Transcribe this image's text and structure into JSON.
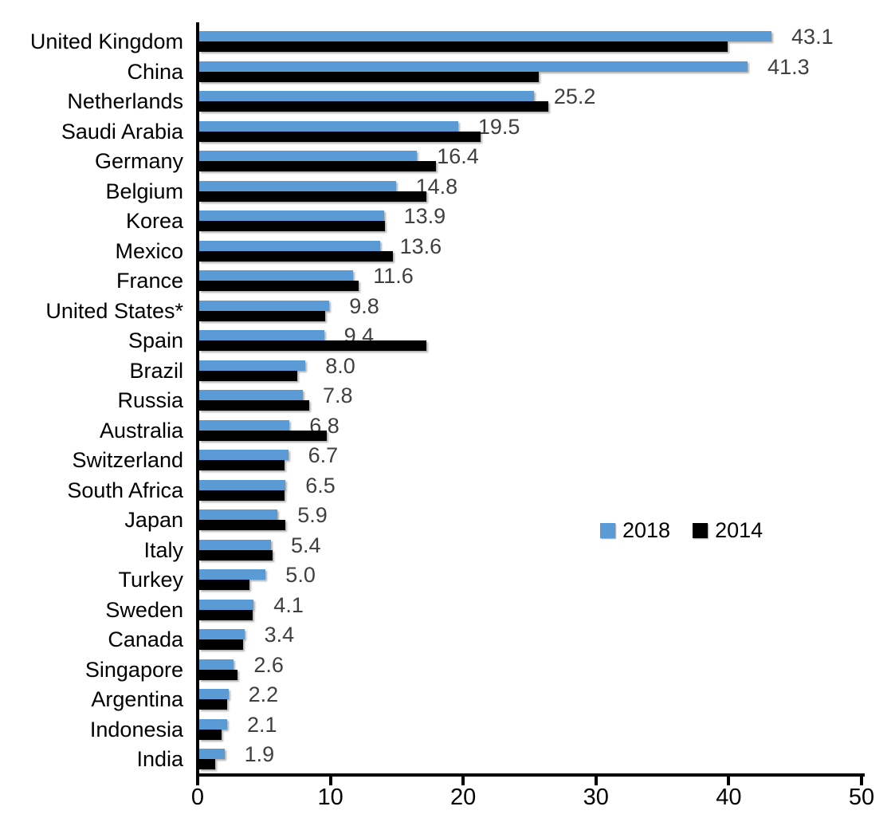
{
  "chart_data": {
    "type": "bar",
    "orientation": "horizontal",
    "title": "",
    "xlabel": "",
    "ylabel": "",
    "xlim": [
      0,
      50
    ],
    "x_ticks": [
      "0",
      "10",
      "20",
      "30",
      "40",
      "50"
    ],
    "grid": false,
    "legend_position": "center-right",
    "categories": [
      "United Kingdom",
      "China",
      "Netherlands",
      "Saudi Arabia",
      "Germany",
      "Belgium",
      "Korea",
      "Mexico",
      "France",
      "United States*",
      "Spain",
      "Brazil",
      "Russia",
      "Australia",
      "Switzerland",
      "South Africa",
      "Japan",
      "Italy",
      "Turkey",
      "Sweden",
      "Canada",
      "Singapore",
      "Argentina",
      "Indonesia",
      "India"
    ],
    "series": [
      {
        "name": "2018",
        "color": "#5b9bd5",
        "values": [
          43.1,
          41.3,
          25.2,
          19.5,
          16.4,
          14.8,
          13.9,
          13.6,
          11.6,
          9.8,
          9.4,
          8.0,
          7.8,
          6.8,
          6.7,
          6.5,
          5.9,
          5.4,
          5.0,
          4.1,
          3.4,
          2.6,
          2.2,
          2.1,
          1.9
        ]
      },
      {
        "name": "2014",
        "color": "#000000",
        "values": [
          39.8,
          25.6,
          26.3,
          21.2,
          17.8,
          17.1,
          14.0,
          14.6,
          12.0,
          9.5,
          17.1,
          7.4,
          8.3,
          9.6,
          6.4,
          6.4,
          6.5,
          5.5,
          3.8,
          4.0,
          3.3,
          2.9,
          2.1,
          1.7,
          1.2
        ]
      }
    ],
    "value_labels": [
      "43.1",
      "41.3",
      "25.2",
      "19.5",
      "16.4",
      "14.8",
      "13.9",
      "13.6",
      "11.6",
      "9.8",
      "9.4",
      "8.0",
      "7.8",
      "6.8",
      "6.7",
      "6.5",
      "5.9",
      "5.4",
      "5.0",
      "4.1",
      "3.4",
      "2.6",
      "2.2",
      "2.1",
      "1.9"
    ],
    "value_label_color": "#3f3f3f",
    "axis_color": "#000000"
  }
}
